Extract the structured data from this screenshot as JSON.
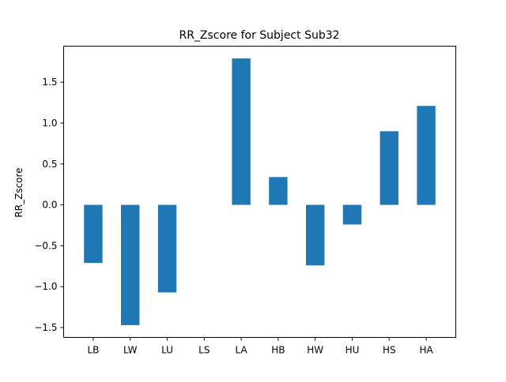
{
  "chart_data": {
    "type": "bar",
    "title": "RR_Zscore for Subject Sub32",
    "xlabel": "",
    "ylabel": "RR_Zscore",
    "categories": [
      "LB",
      "LW",
      "LU",
      "LS",
      "LA",
      "HB",
      "HW",
      "HU",
      "HS",
      "HA"
    ],
    "values": [
      -0.71,
      -1.47,
      -1.07,
      0.0,
      1.79,
      0.34,
      -0.74,
      -0.24,
      0.9,
      1.21
    ],
    "ylim": [
      -1.62,
      1.94
    ],
    "yticks": [
      1.5,
      1.0,
      0.5,
      0.0,
      -0.5,
      -1.0,
      -1.5
    ],
    "ytick_labels": [
      "1.5",
      "1.0",
      "0.5",
      "0.0",
      "−0.5",
      "−1.0",
      "−1.5"
    ],
    "bar_color": "#1f77b4",
    "grid": false,
    "legend": "none"
  }
}
